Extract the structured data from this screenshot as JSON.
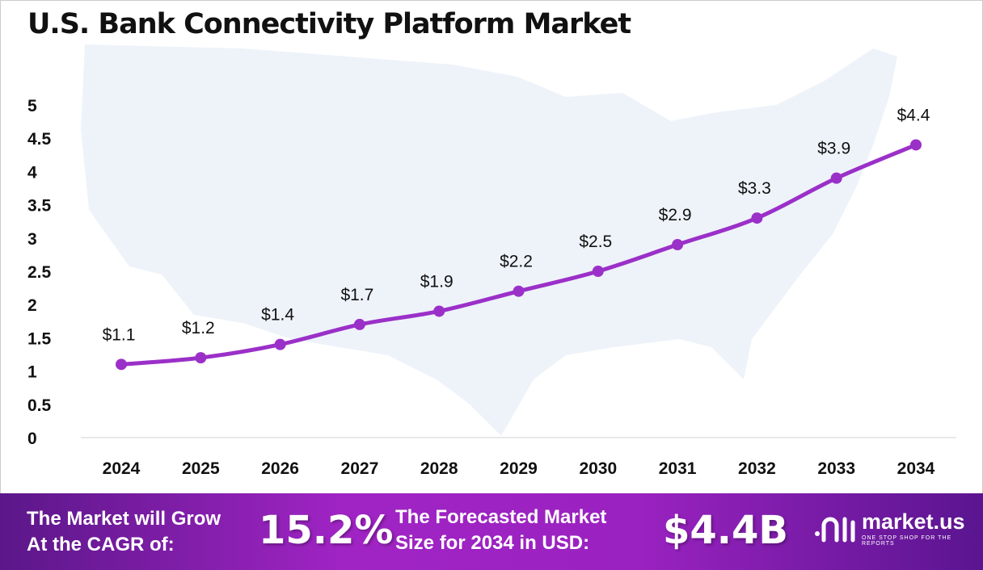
{
  "title": "U.S. Bank Connectivity Platform Market",
  "chart_data": {
    "type": "line",
    "title": "U.S. Bank Connectivity Platform Market",
    "x": [
      "2024",
      "2025",
      "2026",
      "2027",
      "2028",
      "2029",
      "2030",
      "2031",
      "2032",
      "2033",
      "2034"
    ],
    "values": [
      1.1,
      1.2,
      1.4,
      1.7,
      1.9,
      2.2,
      2.5,
      2.9,
      3.3,
      3.9,
      4.4
    ],
    "data_labels": [
      "$1.1",
      "$1.2",
      "$1.4",
      "$1.7",
      "$1.9",
      "$2.2",
      "$2.5",
      "$2.9",
      "$3.3",
      "$3.9",
      "$4.4"
    ],
    "yticks": [
      "0",
      "0.5",
      "1",
      "1.5",
      "2",
      "2.5",
      "3",
      "3.5",
      "4",
      "4.5",
      "5"
    ],
    "ylim": [
      0,
      5
    ],
    "grid": false,
    "line_color": "#9b30c8",
    "background": "faint U.S. map silhouette"
  },
  "footer": {
    "cagr_text_1": "The Market will Grow",
    "cagr_text_2": "At the CAGR of:",
    "cagr_value": "15.2%",
    "forecast_text_1": "The Forecasted Market",
    "forecast_text_2": "Size for 2034 in USD:",
    "forecast_value": "$4.4B",
    "logo_name": "market.us",
    "logo_tagline": "ONE STOP SHOP FOR THE REPORTS"
  }
}
